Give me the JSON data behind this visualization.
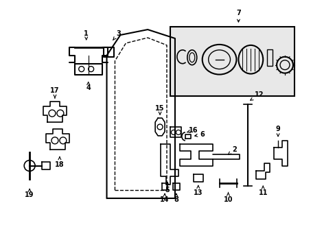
{
  "bg_color": "#ffffff",
  "line_color": "#000000",
  "fig_width": 4.89,
  "fig_height": 3.6,
  "dpi": 100,
  "xlim": [
    0,
    489
  ],
  "ylim": [
    0,
    360
  ]
}
